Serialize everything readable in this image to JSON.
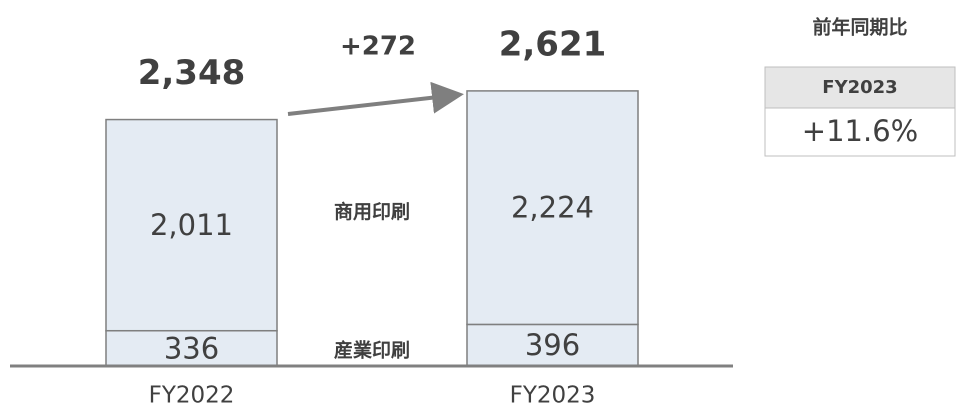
{
  "chart_data": {
    "type": "stacked-bar",
    "categories": [
      "FY2022",
      "FY2023"
    ],
    "series": [
      {
        "name": "産業印刷",
        "color": "#e4ebf3",
        "values": [
          336,
          396
        ],
        "value_labels": [
          "336",
          "396"
        ]
      },
      {
        "name": "商用印刷",
        "color": "#e4ebf3",
        "values": [
          2011,
          2224
        ],
        "value_labels": [
          "2,011",
          "2,224"
        ]
      }
    ],
    "totals": [
      2348,
      2621
    ],
    "total_labels": [
      "2,348",
      "2,621"
    ],
    "annotation": "+272",
    "yoy_table": {
      "title": "前年同期比",
      "header": "FY2023",
      "value": "+11.6%"
    }
  }
}
